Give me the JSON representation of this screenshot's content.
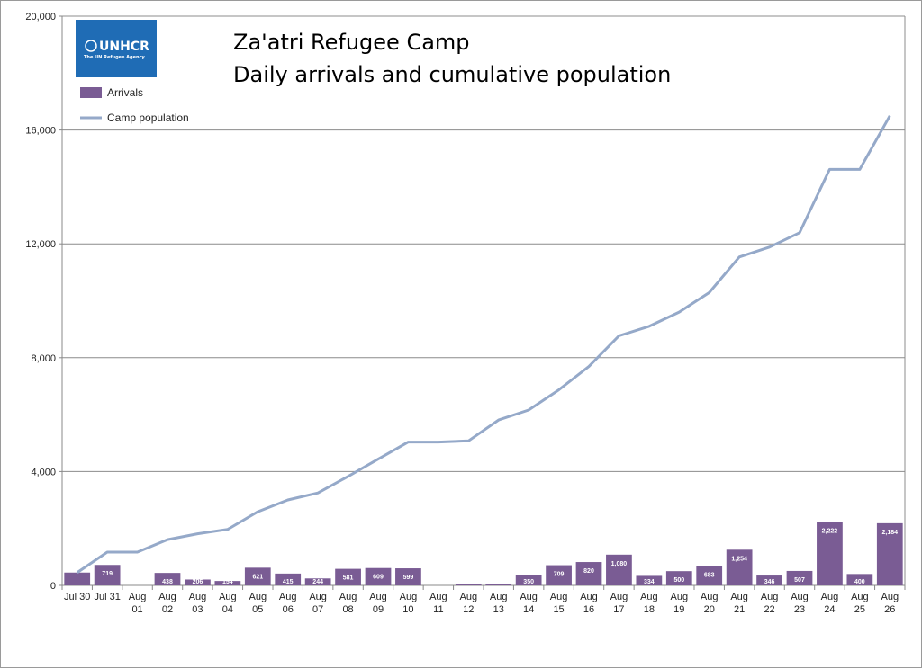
{
  "title_line1": "Za'atri Refugee Camp",
  "title_line2": "Daily arrivals and cumulative population",
  "logo": {
    "name": "UNHCR",
    "tagline": "The UN Refugee Agency",
    "color": "#1f6cb5"
  },
  "legend": [
    {
      "name": "Arrivals",
      "color": "#7a5c94"
    },
    {
      "name": "Camp population",
      "color": "#95a9c9"
    }
  ],
  "chart_data": {
    "type": "bar",
    "categories": [
      [
        "Jul 30"
      ],
      [
        "Jul 31"
      ],
      [
        "Aug",
        "01"
      ],
      [
        "Aug",
        "02"
      ],
      [
        "Aug",
        "03"
      ],
      [
        "Aug",
        "04"
      ],
      [
        "Aug",
        "05"
      ],
      [
        "Aug",
        "06"
      ],
      [
        "Aug",
        "07"
      ],
      [
        "Aug",
        "08"
      ],
      [
        "Aug",
        "09"
      ],
      [
        "Aug",
        "10"
      ],
      [
        "Aug",
        "11"
      ],
      [
        "Aug",
        "12"
      ],
      [
        "Aug",
        "13"
      ],
      [
        "Aug",
        "14"
      ],
      [
        "Aug",
        "15"
      ],
      [
        "Aug",
        "16"
      ],
      [
        "Aug",
        "17"
      ],
      [
        "Aug",
        "18"
      ],
      [
        "Aug",
        "19"
      ],
      [
        "Aug",
        "20"
      ],
      [
        "Aug",
        "21"
      ],
      [
        "Aug",
        "22"
      ],
      [
        "Aug",
        "23"
      ],
      [
        "Aug",
        "24"
      ],
      [
        "Aug",
        "25"
      ],
      [
        "Aug",
        "26"
      ]
    ],
    "series": [
      {
        "name": "Arrivals",
        "type": "bar",
        "color": "#7a5c94",
        "values": [
          450,
          719,
          0,
          438,
          206,
          154,
          621,
          415,
          244,
          581,
          609,
          599,
          0,
          40,
          40,
          350,
          709,
          820,
          1080,
          334,
          500,
          683,
          1254,
          346,
          507,
          2222,
          400,
          2184
        ],
        "labels": [
          "",
          "719",
          "",
          "438",
          "206",
          "154",
          "621",
          "415",
          "244",
          "581",
          "609",
          "599",
          "",
          "",
          "",
          "350",
          "709",
          "820",
          "1,080",
          "334",
          "500",
          "683",
          "1,254",
          "346",
          "507",
          "2,222",
          "400",
          "2,184"
        ]
      },
      {
        "name": "Camp population",
        "type": "line",
        "color": "#95a9c9",
        "values": [
          450,
          1169,
          1169,
          1607,
          1813,
          1967,
          2588,
          3003,
          3247,
          3828,
          4437,
          5036,
          5036,
          5076,
          5810,
          6160,
          6869,
          7689,
          8769,
          9103,
          9603,
          10286,
          11540,
          11886,
          12393,
          14615,
          14615,
          16500
        ]
      }
    ],
    "yticks": [
      "0",
      "4,000",
      "8,000",
      "12,000",
      "16,000",
      "20,000"
    ],
    "ylim": [
      0,
      20000
    ],
    "grid": true,
    "legend_position": "top-left"
  }
}
